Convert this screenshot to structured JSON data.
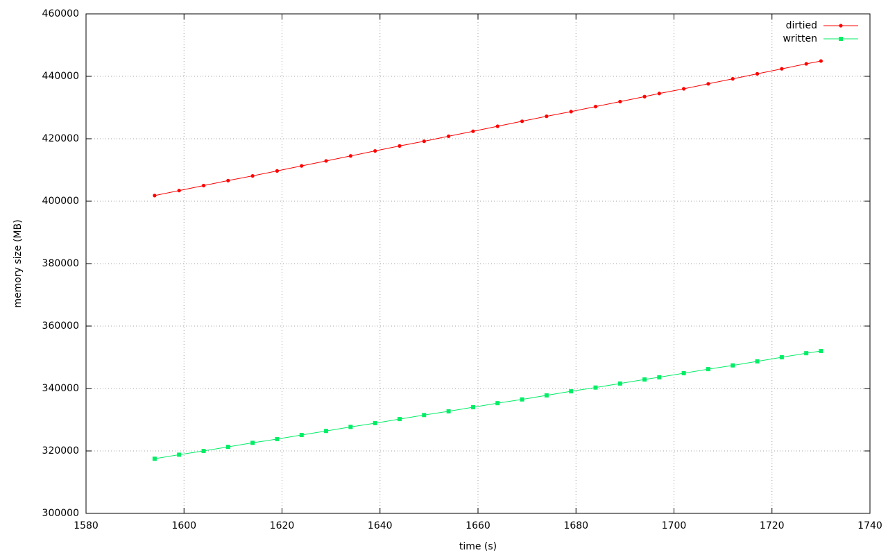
{
  "chart_data": {
    "type": "line",
    "xlabel": "time (s)",
    "ylabel": "memory size (MB)",
    "x": [
      1594,
      1599,
      1604,
      1609,
      1614,
      1619,
      1624,
      1629,
      1634,
      1639,
      1644,
      1649,
      1654,
      1659,
      1664,
      1669,
      1674,
      1679,
      1684,
      1689,
      1694,
      1697,
      1702,
      1707,
      1712,
      1717,
      1722,
      1727,
      1730
    ],
    "series": [
      {
        "name": "dirtied",
        "color": "#ff0000",
        "marker": "circle",
        "values": [
          401800,
          403400,
          405000,
          406600,
          408100,
          409700,
          411300,
          412900,
          414500,
          416100,
          417700,
          419200,
          420800,
          422400,
          424000,
          425600,
          427200,
          428700,
          430300,
          431900,
          433500,
          434500,
          436000,
          437600,
          439200,
          440800,
          442400,
          444000,
          444900
        ]
      },
      {
        "name": "written",
        "color": "#00ee66",
        "marker": "square",
        "values": [
          317500,
          318800,
          320000,
          321300,
          322600,
          323800,
          325100,
          326400,
          327700,
          328900,
          330200,
          331500,
          332700,
          334000,
          335300,
          336500,
          337800,
          339100,
          340300,
          341600,
          342900,
          343600,
          344900,
          346200,
          347400,
          348700,
          350000,
          351300,
          352000
        ]
      }
    ],
    "xlim": [
      1580,
      1740
    ],
    "xticks": [
      1580,
      1600,
      1620,
      1640,
      1660,
      1680,
      1700,
      1720,
      1740
    ],
    "ylim": [
      300000,
      460000
    ],
    "yticks": [
      300000,
      320000,
      340000,
      360000,
      380000,
      400000,
      420000,
      440000,
      460000
    ],
    "grid": true,
    "legend": "top-right"
  }
}
